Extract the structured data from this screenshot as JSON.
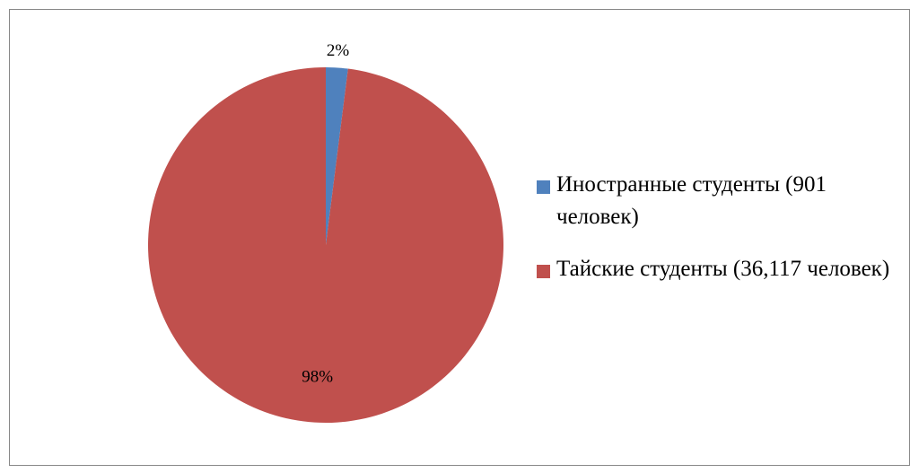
{
  "chart_data": {
    "type": "pie",
    "categories": [
      "Иностранные студенты (901 человек)",
      "Тайские студенты (36,117 человек)"
    ],
    "values": [
      2,
      98
    ],
    "value_labels": [
      "2%",
      "98%"
    ],
    "colors": [
      "#4f81bd",
      "#c0504d"
    ],
    "legend": "right"
  }
}
